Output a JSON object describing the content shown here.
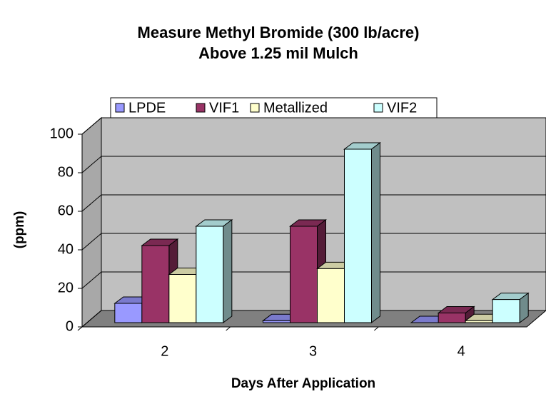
{
  "chart_data": {
    "type": "bar3d",
    "title": [
      "Measure Methyl Bromide (300 lb/acre)",
      "Above 1.25 mil Mulch"
    ],
    "x_label": "Days After Application",
    "y_label": "(ppm)",
    "categories": [
      "2",
      "3",
      "4"
    ],
    "series": [
      {
        "name": "LPDE",
        "color": "#9999ff",
        "values": [
          10,
          1,
          0
        ]
      },
      {
        "name": "VIF1",
        "color": "#993366",
        "values": [
          40,
          50,
          5
        ]
      },
      {
        "name": "Metallized",
        "color": "#ffffcc",
        "values": [
          25,
          28,
          1
        ]
      },
      {
        "name": "VIF2",
        "color": "#ccffff",
        "values": [
          50,
          90,
          12
        ]
      }
    ],
    "ylim": [
      0,
      100
    ],
    "yticks": [
      0,
      20,
      40,
      60,
      80,
      100
    ],
    "grid": true,
    "legend": "top"
  }
}
